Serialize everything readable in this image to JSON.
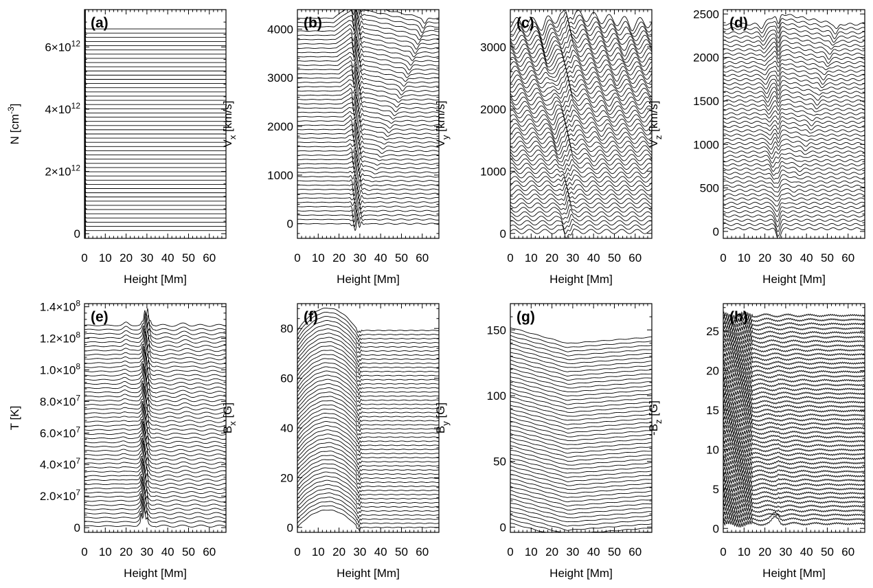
{
  "figure": {
    "description_note": "",
    "line_color": "#000000",
    "background": "#ffffff"
  },
  "chart_data": [
    {
      "id": "a",
      "tag": "(a)",
      "type": "line",
      "title": "",
      "xlabel": "Height [Mm]",
      "ylabel": {
        "main": "N [cm",
        "sup": "-3",
        "tail": "]"
      },
      "xlim": [
        0,
        68
      ],
      "ylim": [
        -150000000000.0,
        7200000000000.0
      ],
      "xticks": [
        0,
        10,
        20,
        30,
        40,
        50,
        60
      ],
      "xtick_labels": [
        "0",
        "10",
        "20",
        "30",
        "40",
        "50",
        "60"
      ],
      "yticks": [
        0,
        2000000000000.0,
        4000000000000.0,
        6000000000000.0
      ],
      "ytick_labels": [
        {
          "text": "0"
        },
        {
          "text": "2×10",
          "sup": "12"
        },
        {
          "text": "4×10",
          "sup": "12"
        },
        {
          "text": "6×10",
          "sup": "12"
        }
      ],
      "series": {
        "count": 49,
        "base": 100000000000.0,
        "step": 135000000000.0,
        "shape": "density_flat"
      }
    },
    {
      "id": "b",
      "tag": "(b)",
      "type": "line",
      "title": "",
      "xlabel": "Height [Mm]",
      "ylabel": {
        "main": "V",
        "sub": "x",
        "tail": " [km/s]"
      },
      "xlim": [
        0,
        68
      ],
      "ylim": [
        -300,
        4400
      ],
      "xticks": [
        0,
        10,
        20,
        30,
        40,
        50,
        60
      ],
      "xtick_labels": [
        "0",
        "10",
        "20",
        "30",
        "40",
        "50",
        "60"
      ],
      "yticks": [
        0,
        1000,
        2000,
        3000,
        4000
      ],
      "ytick_labels": [
        {
          "text": "0"
        },
        {
          "text": "1000"
        },
        {
          "text": "2000"
        },
        {
          "text": "3000"
        },
        {
          "text": "4000"
        }
      ],
      "series": {
        "count": 49,
        "base": 0,
        "step": 88,
        "shape": "vx_shock"
      }
    },
    {
      "id": "c",
      "tag": "(c)",
      "type": "line",
      "title": "",
      "xlabel": "Height [Mm]",
      "ylabel": {
        "main": "V",
        "sub": "y",
        "tail": " [km/s]"
      },
      "xlim": [
        0,
        68
      ],
      "ylim": [
        -80,
        3600
      ],
      "xticks": [
        0,
        10,
        20,
        30,
        40,
        50,
        60
      ],
      "xtick_labels": [
        "0",
        "10",
        "20",
        "30",
        "40",
        "50",
        "60"
      ],
      "yticks": [
        0,
        1000,
        2000,
        3000
      ],
      "ytick_labels": [
        {
          "text": "0"
        },
        {
          "text": "1000"
        },
        {
          "text": "2000"
        },
        {
          "text": "3000"
        }
      ],
      "series": {
        "count": 49,
        "base": 30,
        "step": 70,
        "shape": "vy_shock"
      }
    },
    {
      "id": "d",
      "tag": "(d)",
      "type": "line",
      "title": "",
      "xlabel": "Height [Mm]",
      "ylabel": {
        "main": "V",
        "sub": "z",
        "tail": " [km/s]"
      },
      "xlim": [
        0,
        68
      ],
      "ylim": [
        -80,
        2550
      ],
      "xticks": [
        0,
        10,
        20,
        30,
        40,
        50,
        60
      ],
      "xtick_labels": [
        "0",
        "10",
        "20",
        "30",
        "40",
        "50",
        "60"
      ],
      "yticks": [
        0,
        500,
        1000,
        1500,
        2000,
        2500
      ],
      "ytick_labels": [
        {
          "text": "0"
        },
        {
          "text": "500"
        },
        {
          "text": "1000"
        },
        {
          "text": "1500"
        },
        {
          "text": "2000"
        },
        {
          "text": "2500"
        }
      ],
      "series": {
        "count": 49,
        "base": 30,
        "step": 49,
        "shape": "vz_shock"
      }
    },
    {
      "id": "e",
      "tag": "(e)",
      "type": "line",
      "title": "",
      "xlabel": "Height [Mm]",
      "ylabel": {
        "main": "T [K]"
      },
      "xlim": [
        0,
        68
      ],
      "ylim": [
        -3000000.0,
        142000000.0
      ],
      "xticks": [
        0,
        10,
        20,
        30,
        40,
        50,
        60
      ],
      "xtick_labels": [
        "0",
        "10",
        "20",
        "30",
        "40",
        "50",
        "60"
      ],
      "yticks": [
        0,
        20000000.0,
        40000000.0,
        60000000.0,
        80000000.0,
        100000000.0,
        120000000.0,
        140000000.0
      ],
      "ytick_labels": [
        {
          "text": "0"
        },
        {
          "text": "2.0×10",
          "sup": "7"
        },
        {
          "text": "4.0×10",
          "sup": "7"
        },
        {
          "text": "6.0×10",
          "sup": "7"
        },
        {
          "text": "8.0×10",
          "sup": "7"
        },
        {
          "text": "1.0×10",
          "sup": "8"
        },
        {
          "text": "1.2×10",
          "sup": "8"
        },
        {
          "text": "1.4×10",
          "sup": "8"
        }
      ],
      "series": {
        "count": 49,
        "base": 1000000.0,
        "step": 2650000.0,
        "shape": "temp_peak"
      }
    },
    {
      "id": "f",
      "tag": "(f)",
      "type": "line",
      "title": "",
      "xlabel": "Height [Mm]",
      "ylabel": {
        "main": "B",
        "sub": "x",
        "tail": " [G]"
      },
      "xlim": [
        0,
        68
      ],
      "ylim": [
        -2,
        90
      ],
      "xticks": [
        0,
        10,
        20,
        30,
        40,
        50,
        60
      ],
      "xtick_labels": [
        "0",
        "10",
        "20",
        "30",
        "40",
        "50",
        "60"
      ],
      "yticks": [
        0,
        20,
        40,
        60,
        80
      ],
      "ytick_labels": [
        {
          "text": "0"
        },
        {
          "text": "20"
        },
        {
          "text": "40"
        },
        {
          "text": "60"
        },
        {
          "text": "80"
        }
      ],
      "series": {
        "count": 49,
        "base": 0,
        "step": 1.65,
        "shape": "bx_arch"
      }
    },
    {
      "id": "g",
      "tag": "(g)",
      "type": "line",
      "title": "",
      "xlabel": "Height [Mm]",
      "ylabel": {
        "main": "B",
        "sub": "y",
        "tail": " [G]"
      },
      "xlim": [
        0,
        68
      ],
      "ylim": [
        -4,
        170
      ],
      "xticks": [
        0,
        10,
        20,
        30,
        40,
        50,
        60
      ],
      "xtick_labels": [
        "0",
        "10",
        "20",
        "30",
        "40",
        "50",
        "60"
      ],
      "yticks": [
        0,
        50,
        100,
        150
      ],
      "ytick_labels": [
        {
          "text": "0"
        },
        {
          "text": "50"
        },
        {
          "text": "100"
        },
        {
          "text": "150"
        }
      ],
      "series": {
        "count": 49,
        "base": 3,
        "step": 3.1,
        "shape": "by_vee"
      }
    },
    {
      "id": "h",
      "tag": "(h)",
      "type": "line",
      "title": "",
      "xlabel": "Height [Mm]",
      "ylabel": {
        "main": "-B",
        "sub": "z",
        "tail": " [G]"
      },
      "xlim": [
        0,
        68
      ],
      "ylim": [
        -0.5,
        28.5
      ],
      "xticks": [
        0,
        10,
        20,
        30,
        40,
        50,
        60
      ],
      "xtick_labels": [
        "0",
        "10",
        "20",
        "30",
        "40",
        "50",
        "60"
      ],
      "yticks": [
        0,
        5,
        10,
        15,
        20,
        25
      ],
      "ytick_labels": [
        {
          "text": "0"
        },
        {
          "text": "5"
        },
        {
          "text": "10"
        },
        {
          "text": "15"
        },
        {
          "text": "20"
        },
        {
          "text": "25"
        }
      ],
      "series": {
        "count": 49,
        "base": 0.6,
        "step": 0.55,
        "shape": "bz_wavy"
      }
    }
  ]
}
